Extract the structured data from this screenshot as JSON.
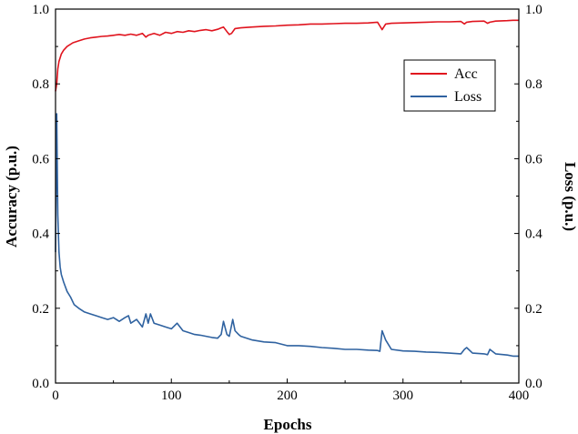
{
  "chart_data": {
    "type": "line",
    "xlabel": "Epochs",
    "ylabel_left": "Accuracy (p.u.)",
    "ylabel_right": "Loss (p.u.)",
    "xlim": [
      0,
      400
    ],
    "ylim_left": [
      0.0,
      1.0
    ],
    "ylim_right": [
      0.0,
      1.0
    ],
    "x_ticks": [
      0,
      100,
      200,
      300,
      400
    ],
    "y_ticks_left": [
      "0.0",
      "0.2",
      "0.4",
      "0.6",
      "0.8",
      "1.0"
    ],
    "y_ticks_right": [
      "0.0",
      "0.2",
      "0.4",
      "0.6",
      "0.8",
      "1.0"
    ],
    "grid": false,
    "legend_position": "top-right",
    "series": [
      {
        "name": "Acc",
        "axis": "left",
        "color": "#e0141e",
        "x": [
          0,
          1,
          2,
          3,
          5,
          7,
          10,
          15,
          20,
          25,
          30,
          35,
          40,
          45,
          50,
          55,
          60,
          65,
          70,
          75,
          78,
          80,
          85,
          90,
          95,
          100,
          105,
          110,
          115,
          120,
          125,
          130,
          135,
          140,
          143,
          145,
          148,
          150,
          152,
          155,
          160,
          170,
          180,
          190,
          200,
          210,
          220,
          230,
          240,
          250,
          260,
          270,
          278,
          280,
          282,
          285,
          290,
          300,
          310,
          320,
          330,
          340,
          350,
          353,
          355,
          360,
          370,
          373,
          375,
          380,
          390,
          395,
          400
        ],
        "y": [
          0.78,
          0.8,
          0.84,
          0.86,
          0.88,
          0.89,
          0.9,
          0.91,
          0.915,
          0.92,
          0.923,
          0.925,
          0.927,
          0.928,
          0.93,
          0.932,
          0.93,
          0.933,
          0.93,
          0.935,
          0.925,
          0.93,
          0.935,
          0.93,
          0.938,
          0.935,
          0.94,
          0.938,
          0.942,
          0.94,
          0.943,
          0.945,
          0.942,
          0.946,
          0.95,
          0.952,
          0.94,
          0.932,
          0.935,
          0.948,
          0.95,
          0.952,
          0.954,
          0.955,
          0.957,
          0.958,
          0.96,
          0.96,
          0.961,
          0.962,
          0.962,
          0.963,
          0.965,
          0.955,
          0.945,
          0.96,
          0.962,
          0.963,
          0.964,
          0.965,
          0.966,
          0.966,
          0.967,
          0.96,
          0.965,
          0.967,
          0.968,
          0.962,
          0.965,
          0.968,
          0.969,
          0.97,
          0.97
        ]
      },
      {
        "name": "Loss",
        "axis": "right",
        "color": "#2f62a0",
        "x": [
          0,
          1,
          2,
          3,
          4,
          5,
          7,
          10,
          13,
          16,
          20,
          25,
          30,
          35,
          40,
          45,
          50,
          55,
          60,
          63,
          65,
          70,
          75,
          78,
          80,
          82,
          85,
          90,
          95,
          100,
          105,
          110,
          115,
          120,
          125,
          130,
          135,
          140,
          143,
          145,
          148,
          150,
          153,
          155,
          158,
          160,
          170,
          180,
          190,
          200,
          210,
          220,
          230,
          240,
          250,
          260,
          270,
          278,
          280,
          282,
          285,
          290,
          300,
          310,
          320,
          330,
          340,
          350,
          353,
          355,
          360,
          370,
          373,
          375,
          380,
          390,
          395,
          400
        ],
        "y": [
          0.35,
          0.72,
          0.45,
          0.35,
          0.31,
          0.29,
          0.27,
          0.245,
          0.23,
          0.21,
          0.2,
          0.19,
          0.185,
          0.18,
          0.175,
          0.17,
          0.175,
          0.165,
          0.175,
          0.18,
          0.16,
          0.17,
          0.15,
          0.185,
          0.16,
          0.185,
          0.16,
          0.155,
          0.15,
          0.145,
          0.16,
          0.14,
          0.135,
          0.13,
          0.128,
          0.125,
          0.122,
          0.12,
          0.13,
          0.165,
          0.13,
          0.125,
          0.17,
          0.14,
          0.13,
          0.125,
          0.115,
          0.11,
          0.108,
          0.1,
          0.1,
          0.098,
          0.095,
          0.093,
          0.09,
          0.09,
          0.088,
          0.087,
          0.085,
          0.14,
          0.115,
          0.09,
          0.086,
          0.085,
          0.083,
          0.082,
          0.08,
          0.078,
          0.09,
          0.095,
          0.08,
          0.078,
          0.076,
          0.09,
          0.078,
          0.075,
          0.072,
          0.072
        ]
      }
    ]
  }
}
